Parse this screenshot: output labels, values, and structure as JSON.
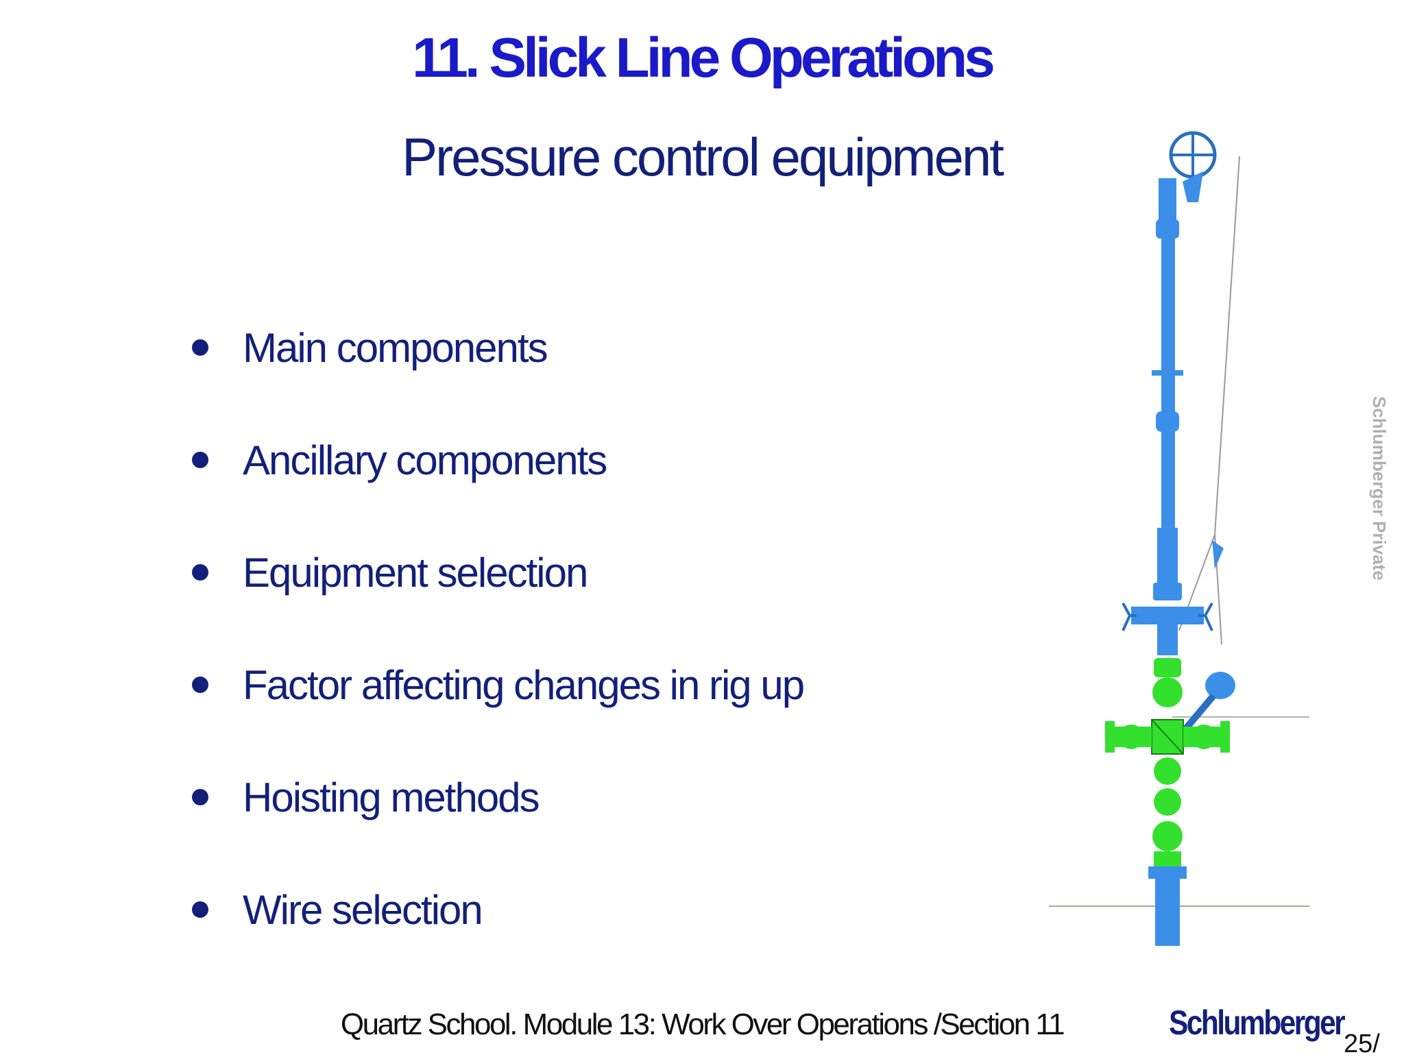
{
  "slide": {
    "title": "11. Slick Line Operations",
    "subtitle": "Pressure control equipment",
    "bullets": [
      "Main components",
      "Ancillary components",
      "Equipment selection",
      "Factor affecting changes in rig up",
      "Hoisting methods",
      "Wire selection"
    ],
    "watermark": "Schlumberger Private",
    "footer": "Quartz School.  Module 13: Work Over Operations /Section 11",
    "logo_text": "Schlumberger",
    "page_number": "25/"
  },
  "colors": {
    "title": "#1a1ac8",
    "text": "#13207a",
    "equipment_blue": "#3b8fe8",
    "equipment_green": "#33e02e"
  },
  "icons": {
    "figure": "pressure-control-equipment-illustration"
  }
}
